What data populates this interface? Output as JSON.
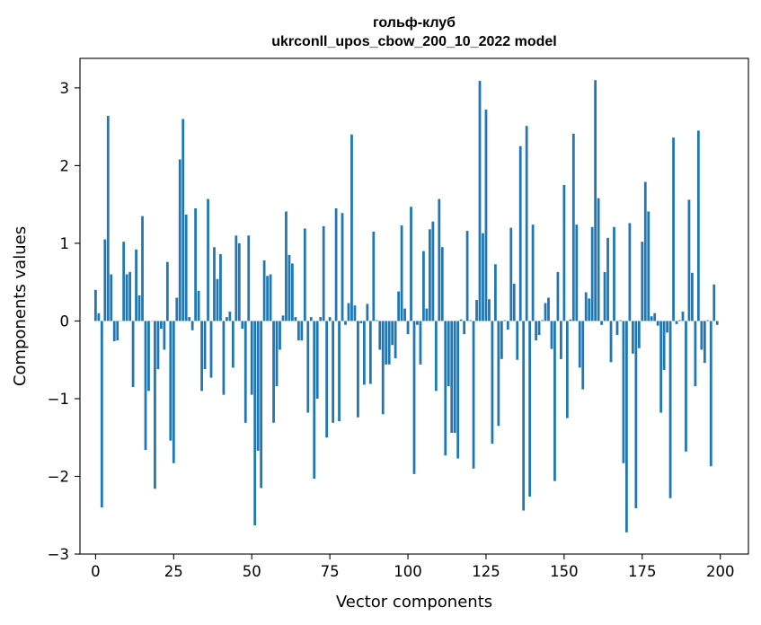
{
  "chart_data": {
    "type": "bar",
    "title": "гольф-клуб",
    "subtitle": "ukrconll_upos_cbow_200_10_2022 model",
    "xlabel": "Vector components",
    "ylabel": "Components values",
    "xlim": [
      -5,
      209
    ],
    "ylim": [
      -3,
      3.38
    ],
    "xticks": [
      0,
      25,
      50,
      75,
      100,
      125,
      150,
      175,
      200
    ],
    "xtick_labels": [
      "0",
      "25",
      "50",
      "75",
      "100",
      "125",
      "150",
      "175",
      "200"
    ],
    "yticks": [
      -3,
      -2,
      -1,
      0,
      1,
      2,
      3
    ],
    "ytick_labels": [
      "−3",
      "−2",
      "−1",
      "0",
      "1",
      "2",
      "3"
    ],
    "grid": false,
    "legend": "none",
    "color": "#1f77b4",
    "x": [
      0,
      1,
      2,
      3,
      4,
      5,
      6,
      7,
      8,
      9,
      10,
      11,
      12,
      13,
      14,
      15,
      16,
      17,
      18,
      19,
      20,
      21,
      22,
      23,
      24,
      25,
      26,
      27,
      28,
      29,
      30,
      31,
      32,
      33,
      34,
      35,
      36,
      37,
      38,
      39,
      40,
      41,
      42,
      43,
      44,
      45,
      46,
      47,
      48,
      49,
      50,
      51,
      52,
      53,
      54,
      55,
      56,
      57,
      58,
      59,
      60,
      61,
      62,
      63,
      64,
      65,
      66,
      67,
      68,
      69,
      70,
      71,
      72,
      73,
      74,
      75,
      76,
      77,
      78,
      79,
      80,
      81,
      82,
      83,
      84,
      85,
      86,
      87,
      88,
      89,
      90,
      91,
      92,
      93,
      94,
      95,
      96,
      97,
      98,
      99,
      100,
      101,
      102,
      103,
      104,
      105,
      106,
      107,
      108,
      109,
      110,
      111,
      112,
      113,
      114,
      115,
      116,
      117,
      118,
      119,
      120,
      121,
      122,
      123,
      124,
      125,
      126,
      127,
      128,
      129,
      130,
      131,
      132,
      133,
      134,
      135,
      136,
      137,
      138,
      139,
      140,
      141,
      142,
      143,
      144,
      145,
      146,
      147,
      148,
      149,
      150,
      151,
      152,
      153,
      154,
      155,
      156,
      157,
      158,
      159,
      160,
      161,
      162,
      163,
      164,
      165,
      166,
      167,
      168,
      169,
      170,
      171,
      172,
      173,
      174,
      175,
      176,
      177,
      178,
      179,
      180,
      181,
      182,
      183,
      184,
      185,
      186,
      187,
      188,
      189,
      190,
      191,
      192,
      193,
      194,
      195,
      196,
      197,
      198,
      199
    ],
    "values": [
      0.4,
      0.1,
      -2.4,
      1.05,
      2.64,
      0.6,
      -0.26,
      -0.25,
      0,
      1.02,
      0.6,
      0.63,
      -0.85,
      0.92,
      0.33,
      1.35,
      -1.66,
      -0.9,
      0,
      -2.16,
      -0.62,
      -0.1,
      -0.37,
      0.76,
      -1.54,
      -1.83,
      0.3,
      2.08,
      2.6,
      1.37,
      0.05,
      -0.12,
      1.45,
      0.39,
      -0.9,
      -0.62,
      1.57,
      -0.73,
      0.95,
      0.54,
      0.86,
      -0.95,
      0.05,
      0.12,
      -0.6,
      1.1,
      1.0,
      -0.1,
      -1.31,
      1.1,
      -0.95,
      -2.63,
      -1.67,
      -2.15,
      0.78,
      0.58,
      0.6,
      -1.31,
      -0.84,
      -0.37,
      0.07,
      1.41,
      0.85,
      0.74,
      0.05,
      -0.25,
      -0.25,
      1.19,
      -1.18,
      0.05,
      -2.03,
      -1.0,
      0.05,
      1.22,
      -1.5,
      0.05,
      -1.31,
      1.45,
      -1.29,
      1.39,
      -0.05,
      0.23,
      2.4,
      0.2,
      -1.24,
      -0.03,
      -0.82,
      0.22,
      -0.81,
      1.15,
      0.01,
      -0.37,
      -1.2,
      -0.56,
      -0.56,
      -0.31,
      -0.48,
      0.38,
      1.23,
      0.16,
      -0.17,
      1.47,
      -1.97,
      -0.05,
      -0.56,
      0.9,
      0.16,
      1.18,
      1.28,
      -0.9,
      1.57,
      0.95,
      -1.73,
      -0.84,
      -1.44,
      -1.44,
      -1.77,
      0.02,
      -0.17,
      1.16,
      0.01,
      -1.9,
      0.27,
      3.09,
      1.13,
      2.72,
      0.28,
      -1.58,
      0.73,
      -1.35,
      -0.49,
      0.01,
      -0.11,
      1.2,
      0.48,
      -0.5,
      2.25,
      -2.44,
      2.51,
      -2.26,
      1.24,
      -0.25,
      -0.18,
      0.01,
      0.23,
      0.3,
      -0.36,
      -2.06,
      0.63,
      -0.49,
      1.75,
      -1.25,
      0.02,
      2.41,
      1.24,
      -0.6,
      -0.88,
      0.37,
      0.29,
      1.21,
      3.1,
      1.58,
      -0.05,
      0.63,
      1.07,
      -0.53,
      1.21,
      -0.18,
      0.01,
      -1.83,
      -2.72,
      1.26,
      -0.42,
      -2.41,
      -0.35,
      1.02,
      1.79,
      1.41,
      0.06,
      0.1,
      -0.06,
      -1.18,
      -0.63,
      -0.15,
      -2.28,
      2.36,
      -0.04,
      0.01,
      0.12,
      -1.68,
      1.56,
      0.62,
      -0.84,
      2.45,
      -0.37,
      -0.54,
      0.01,
      -1.87,
      0.47,
      -0.05
    ]
  }
}
